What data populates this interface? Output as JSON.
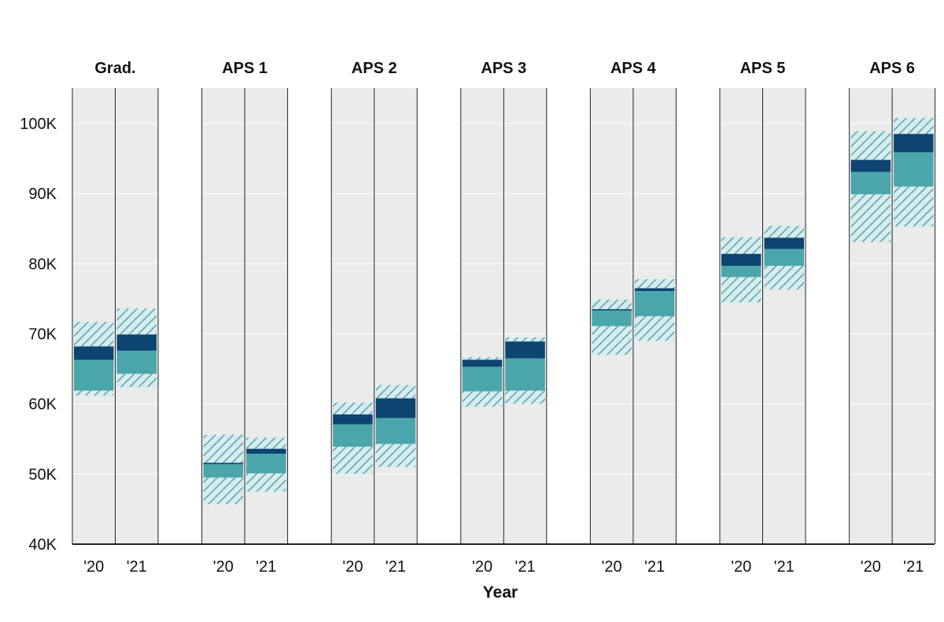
{
  "colors": {
    "panel_bg": "#eaeceb",
    "divider": "#222222",
    "gridline": "#ffffff",
    "hatch_fill": "#d9ebee",
    "hatch_line": "#4fa6ad",
    "iqr_fill": "#4ba6ab",
    "median_band": "#0d4470",
    "axis": "#222222"
  },
  "chart_data": {
    "type": "range-bar",
    "xlabel": "Year",
    "ylabel": "",
    "ylim": [
      40000,
      105000
    ],
    "yticks": [
      40000,
      50000,
      60000,
      70000,
      80000,
      90000,
      100000
    ],
    "ytick_labels": [
      "40K",
      "50K",
      "60K",
      "70K",
      "80K",
      "90K",
      "100K"
    ],
    "grid": true,
    "groups": [
      {
        "name": "Grad.",
        "years": [
          {
            "label": "'20",
            "outer": [
              61200,
              71700
            ],
            "inner": [
              61900,
              66300
            ],
            "dark": [
              66300,
              68200
            ]
          },
          {
            "label": "'21",
            "outer": [
              62400,
              73600
            ],
            "inner": [
              64300,
              67600
            ],
            "dark": [
              67600,
              69900
            ]
          }
        ]
      },
      {
        "name": "APS 1",
        "years": [
          {
            "label": "'20",
            "outer": [
              45700,
              55600
            ],
            "inner": [
              49500,
              51400
            ],
            "dark": [
              51400,
              51600
            ]
          },
          {
            "label": "'21",
            "outer": [
              47500,
              55200
            ],
            "inner": [
              50100,
              52900
            ],
            "dark": [
              52900,
              53600
            ]
          }
        ]
      },
      {
        "name": "APS 2",
        "years": [
          {
            "label": "'20",
            "outer": [
              50000,
              60200
            ],
            "inner": [
              53900,
              57100
            ],
            "dark": [
              57100,
              58500
            ]
          },
          {
            "label": "'21",
            "outer": [
              51000,
              62700
            ],
            "inner": [
              54300,
              58000
            ],
            "dark": [
              58000,
              60800
            ]
          }
        ]
      },
      {
        "name": "APS 3",
        "years": [
          {
            "label": "'20",
            "outer": [
              59600,
              66700
            ],
            "inner": [
              61800,
              65300
            ],
            "dark": [
              65300,
              66300
            ]
          },
          {
            "label": "'21",
            "outer": [
              60000,
              69500
            ],
            "inner": [
              61900,
              66500
            ],
            "dark": [
              66500,
              68900
            ]
          }
        ]
      },
      {
        "name": "APS 4",
        "years": [
          {
            "label": "'20",
            "outer": [
              67000,
              74900
            ],
            "inner": [
              71100,
              73500
            ],
            "dark": [
              73500,
              73500
            ]
          },
          {
            "label": "'21",
            "outer": [
              69000,
              77800
            ],
            "inner": [
              72500,
              76100
            ],
            "dark": [
              76100,
              76500
            ]
          }
        ]
      },
      {
        "name": "APS 5",
        "years": [
          {
            "label": "'20",
            "outer": [
              74500,
              83800
            ],
            "inner": [
              78100,
              79700
            ],
            "dark": [
              79700,
              81400
            ]
          },
          {
            "label": "'21",
            "outer": [
              76300,
              85400
            ],
            "inner": [
              79700,
              82100
            ],
            "dark": [
              82100,
              83700
            ]
          }
        ]
      },
      {
        "name": "APS 6",
        "years": [
          {
            "label": "'20",
            "outer": [
              83100,
              98900
            ],
            "inner": [
              89900,
              93100
            ],
            "dark": [
              93100,
              94800
            ]
          },
          {
            "label": "'21",
            "outer": [
              85300,
              100800
            ],
            "inner": [
              91000,
              95900
            ],
            "dark": [
              95900,
              98500
            ]
          }
        ]
      }
    ]
  }
}
